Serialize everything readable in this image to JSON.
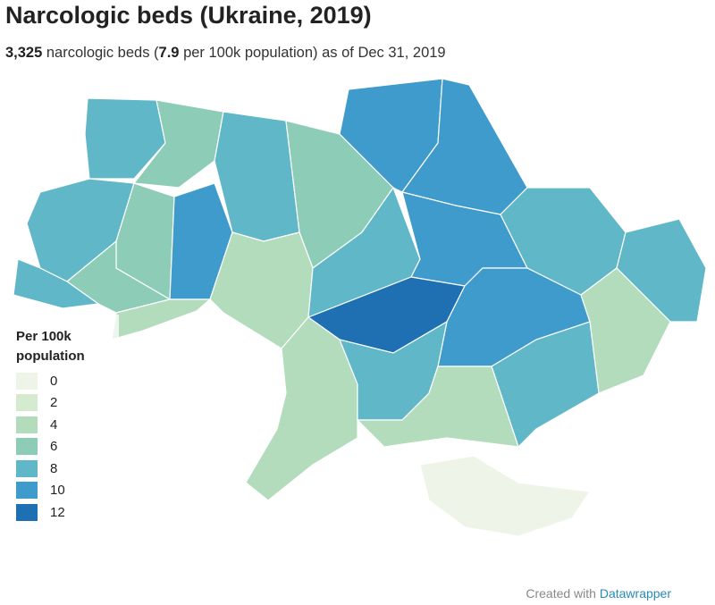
{
  "header": {
    "title": "Narcologic beds (Ukraine, 2019)",
    "subtitle": {
      "total": "3,325",
      "text1": " narcologic beds (",
      "rate": "7.9",
      "text2": " per 100k population) as of Dec 31, 2019"
    }
  },
  "legend": {
    "title": "Per 100k population",
    "items": [
      {
        "label": 0,
        "color": "#eef5e8"
      },
      {
        "label": 2,
        "color": "#d4ebcf"
      },
      {
        "label": 4,
        "color": "#b2dcbb"
      },
      {
        "label": 6,
        "color": "#8dcdb8"
      },
      {
        "label": 8,
        "color": "#60b7c8"
      },
      {
        "label": 10,
        "color": "#3e9bcc"
      },
      {
        "label": 12,
        "color": "#1f70b2"
      }
    ]
  },
  "regions": {
    "values": [
      8,
      7,
      9,
      6,
      10,
      10,
      9,
      7,
      11,
      7,
      8,
      5,
      5,
      9,
      10,
      8,
      8,
      12,
      10,
      5,
      5,
      8,
      8,
      5,
      1
    ]
  },
  "footer": {
    "prefix": "Created with ",
    "brand": "Datawrapper"
  }
}
